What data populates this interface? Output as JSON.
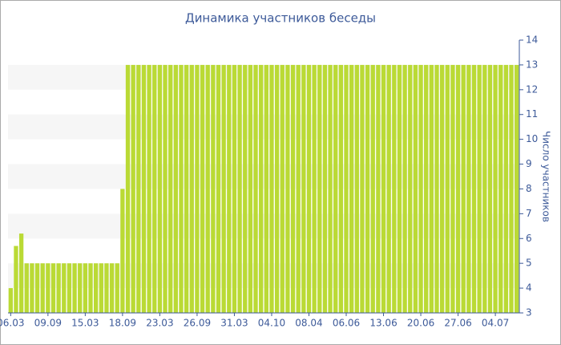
{
  "chart_data": {
    "type": "bar",
    "title": "Динамика участников беседы",
    "y_axis_label": "Число участников",
    "categories": [
      "06.03",
      null,
      null,
      null,
      null,
      null,
      null,
      "09.09",
      null,
      null,
      null,
      null,
      null,
      null,
      "15.03",
      null,
      null,
      null,
      null,
      null,
      null,
      "18.09",
      null,
      null,
      null,
      null,
      null,
      null,
      "23.03",
      null,
      null,
      null,
      null,
      null,
      null,
      "26.09",
      null,
      null,
      null,
      null,
      null,
      null,
      "31.03",
      null,
      null,
      null,
      null,
      null,
      null,
      "04.10",
      null,
      null,
      null,
      null,
      null,
      null,
      "08.04",
      null,
      null,
      null,
      null,
      null,
      null,
      "06.06",
      null,
      null,
      null,
      null,
      null,
      null,
      "13.06",
      null,
      null,
      null,
      null,
      null,
      null,
      "20.06",
      null,
      null,
      null,
      null,
      null,
      null,
      "27.06",
      null,
      null,
      null,
      null,
      null,
      null,
      "04.07",
      null,
      null,
      null,
      null
    ],
    "values": [
      4,
      5.7,
      6.2,
      5,
      5,
      5,
      5,
      5,
      5,
      5,
      5,
      5,
      5,
      5,
      5,
      5,
      5,
      5,
      5,
      5,
      5,
      8,
      13,
      13,
      13,
      13,
      13,
      13,
      13,
      13,
      13,
      13,
      13,
      13,
      13,
      13,
      13,
      13,
      13,
      13,
      13,
      13,
      13,
      13,
      13,
      13,
      13,
      13,
      13,
      13,
      13,
      13,
      13,
      13,
      13,
      13,
      13,
      13,
      13,
      13,
      13,
      13,
      13,
      13,
      13,
      13,
      13,
      13,
      13,
      13,
      13,
      13,
      13,
      13,
      13,
      13,
      13,
      13,
      13,
      13,
      13,
      13,
      13,
      13,
      13,
      13,
      13,
      13,
      13,
      13,
      13,
      13,
      13,
      13,
      13,
      13
    ],
    "color": "#bada35",
    "ylim": [
      3,
      14
    ],
    "yticks": [
      3,
      4,
      5,
      6,
      7,
      8,
      9,
      10,
      11,
      12,
      13,
      14
    ],
    "y_axis_side": "right",
    "grid": true
  }
}
